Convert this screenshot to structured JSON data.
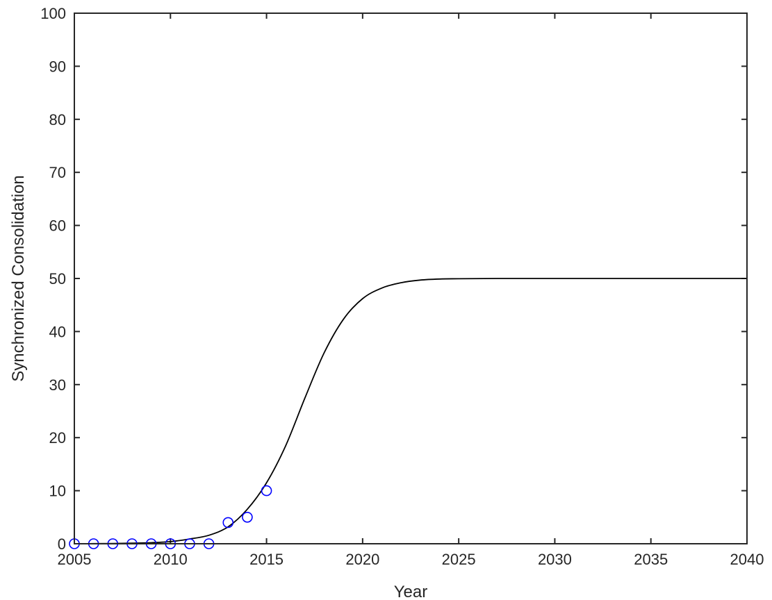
{
  "chart_data": {
    "type": "line",
    "title": "",
    "xlabel": "Year",
    "ylabel": "Synchronized Consolidation",
    "xlim": [
      2005,
      2040
    ],
    "ylim": [
      0,
      100
    ],
    "xticks": [
      2005,
      2010,
      2015,
      2020,
      2025,
      2030,
      2035,
      2040
    ],
    "yticks": [
      0,
      10,
      20,
      30,
      40,
      50,
      60,
      70,
      80,
      90,
      100
    ],
    "grid": false,
    "legend": "none",
    "series": [
      {
        "kind": "line",
        "color": "#000000",
        "x": [
          2005,
          2006,
          2007,
          2008,
          2009,
          2010,
          2011,
          2012,
          2013,
          2014,
          2015,
          2016,
          2017,
          2018,
          2019,
          2020,
          2021,
          2022,
          2023,
          2024,
          2025,
          2027,
          2030,
          2035,
          2040
        ],
        "y": [
          0.0,
          0.02,
          0.05,
          0.1,
          0.2,
          0.4,
          0.9,
          1.6,
          3.2,
          6.5,
          11.5,
          18.5,
          27.5,
          36.0,
          42.3,
          46.2,
          48.2,
          49.2,
          49.7,
          49.9,
          49.95,
          50.0,
          50.0,
          50.0,
          50.0
        ]
      },
      {
        "kind": "scatter",
        "marker": "open-circle",
        "color": "#0000ff",
        "x": [
          2005,
          2006,
          2007,
          2008,
          2009,
          2010,
          2011,
          2012,
          2013,
          2014,
          2015
        ],
        "y": [
          0,
          0,
          0,
          0,
          0,
          0,
          0,
          0,
          4,
          5,
          10
        ]
      }
    ]
  }
}
